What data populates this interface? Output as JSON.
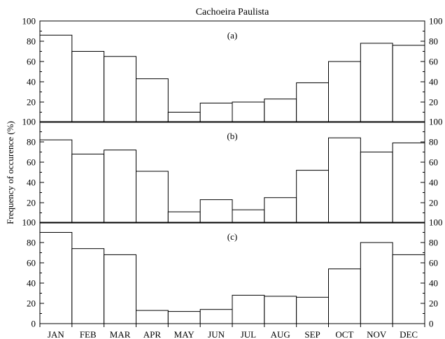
{
  "chart_data": {
    "type": "bar",
    "title": "Cachoeira Paulista",
    "ylabel": "Frequency of occurence (%)",
    "xlabel": "",
    "categories": [
      "JAN",
      "FEB",
      "MAR",
      "APR",
      "MAY",
      "JUN",
      "JUL",
      "AUG",
      "SEP",
      "OCT",
      "NOV",
      "DEC"
    ],
    "ylim": [
      0,
      100
    ],
    "yticks": [
      0,
      20,
      40,
      60,
      80,
      100
    ],
    "grid": false,
    "legend": "none",
    "panels": [
      {
        "label": "(a)",
        "values": [
          86,
          70,
          65,
          43,
          10,
          19,
          20,
          23,
          39,
          60,
          78,
          76
        ]
      },
      {
        "label": "(b)",
        "values": [
          82,
          68,
          72,
          51,
          11,
          23,
          13,
          25,
          52,
          84,
          70,
          79
        ]
      },
      {
        "label": "(c)",
        "values": [
          90,
          74,
          68,
          13,
          12,
          14,
          28,
          27,
          26,
          54,
          80,
          68
        ]
      }
    ]
  }
}
